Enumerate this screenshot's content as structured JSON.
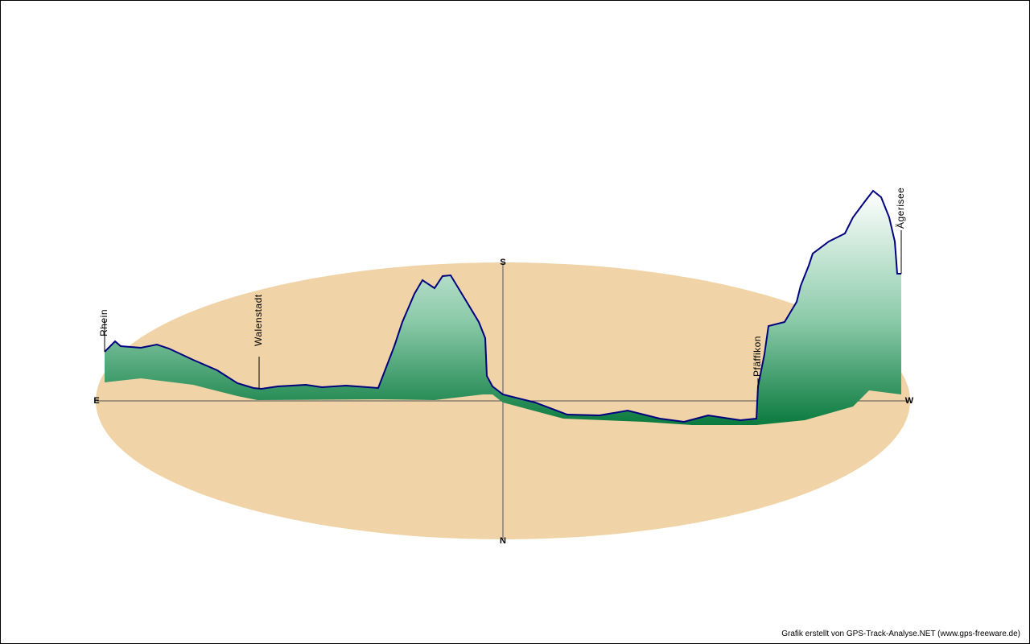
{
  "compass": {
    "east": "E",
    "south": "S",
    "west": "W",
    "north": "N"
  },
  "waypoints": [
    {
      "label": "Rhein"
    },
    {
      "label": "Walenstadt"
    },
    {
      "label": "Pfäffikon"
    },
    {
      "label": "Ägerisee"
    }
  ],
  "credit": "Grafik erstellt von GPS-Track-Analyse.NET (www.gps-freeware.de)"
}
